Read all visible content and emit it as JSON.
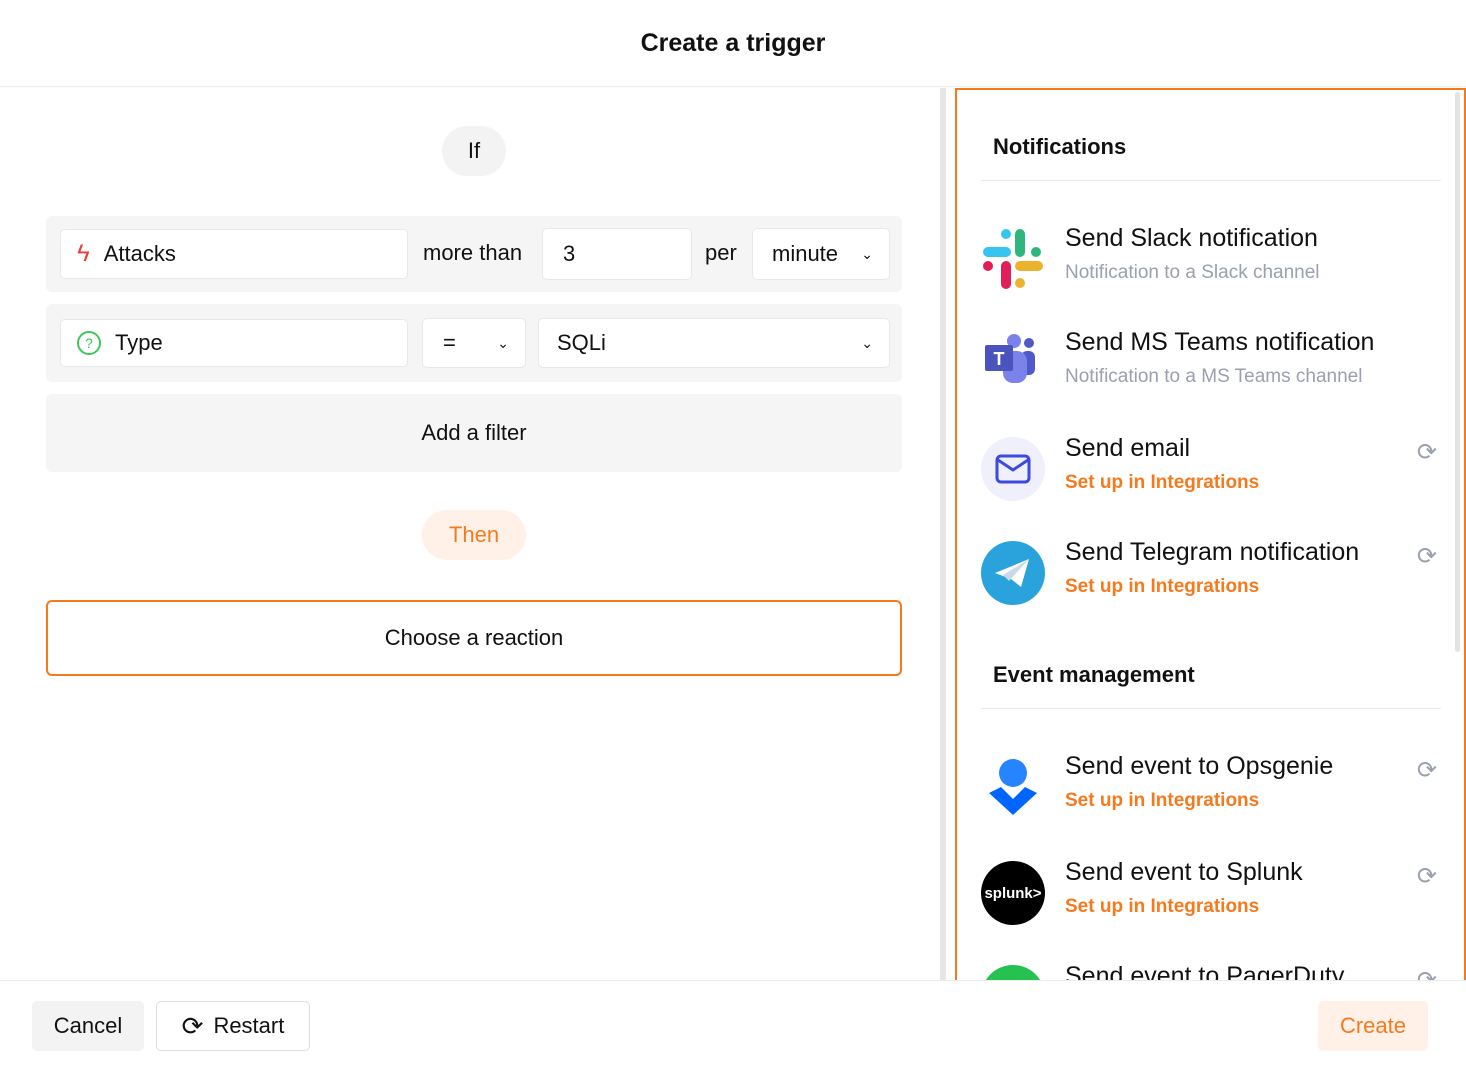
{
  "header": {
    "title": "Create a trigger"
  },
  "builder": {
    "if_label": "If",
    "condition": {
      "metric": "Attacks",
      "operator_text": "more than",
      "threshold": "3",
      "per_text": "per",
      "period": "minute"
    },
    "filter": {
      "field": "Type",
      "operator": "=",
      "value": "SQLi"
    },
    "add_filter_label": "Add a filter",
    "then_label": "Then",
    "choose_reaction_label": "Choose a reaction"
  },
  "panel": {
    "notifications_title": "Notifications",
    "event_management_title": "Event management",
    "items": [
      {
        "title": "Send Slack notification",
        "subtitle": "Notification to a Slack channel"
      },
      {
        "title": "Send MS Teams notification",
        "subtitle": "Notification to a MS Teams channel"
      },
      {
        "title": "Send email",
        "subtitle": "Set up in Integrations"
      },
      {
        "title": "Send Telegram notification",
        "subtitle": "Set up in Integrations"
      },
      {
        "title": "Send event to Opsgenie",
        "subtitle": "Set up in Integrations"
      },
      {
        "title": "Send event to Splunk",
        "subtitle": "Set up in Integrations"
      },
      {
        "title": "Send event to PagerDuty",
        "subtitle": ""
      }
    ],
    "splunk_logo_text": "splunk>"
  },
  "footer": {
    "cancel": "Cancel",
    "restart": "Restart",
    "create": "Create"
  },
  "colors": {
    "accent": "#f57a1e",
    "accent_bg": "#fff1e8"
  }
}
